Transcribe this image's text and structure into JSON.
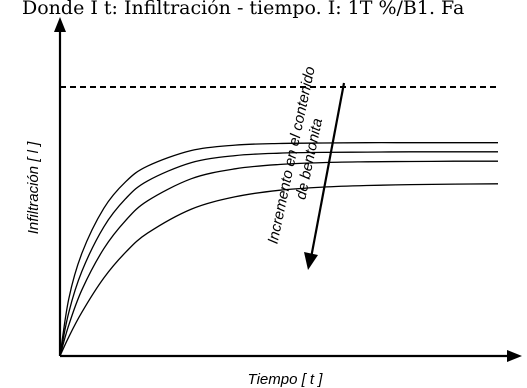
{
  "caption": {
    "text": "Donde I t: Infiltración - tiempo. I: 1T %/B1. Fa"
  },
  "chart_data": {
    "type": "line",
    "title": "",
    "xlabel": "Tiempo [ t ]",
    "ylabel": "Infiltración   [ l ]",
    "axis_ranges": {
      "x": [
        0,
        100
      ],
      "y": [
        0,
        100
      ]
    },
    "grid": false,
    "legend": "none",
    "limit_line": {
      "style": "dashed",
      "y": 100
    },
    "x": [
      0,
      2,
      5,
      10,
      15,
      20,
      30,
      40,
      50,
      60,
      70,
      80,
      90,
      100
    ],
    "series": [
      {
        "values": [
          0,
          21.3,
          38.2,
          54.9,
          64.8,
          70.6,
          76.4,
          78.4,
          79.0,
          79.2,
          79.3,
          79.3,
          79.3,
          79.3
        ]
      },
      {
        "values": [
          0,
          16.2,
          31.5,
          48.0,
          58.5,
          65.1,
          71.9,
          74.5,
          75.4,
          75.7,
          75.8,
          75.9,
          75.9,
          75.9
        ]
      },
      {
        "values": [
          0,
          11.5,
          24.6,
          39.9,
          50.4,
          57.7,
          65.9,
          69.6,
          71.2,
          71.9,
          72.2,
          72.3,
          72.4,
          72.4
        ]
      },
      {
        "values": [
          0,
          7.1,
          16.3,
          29.0,
          38.6,
          45.7,
          54.6,
          59.2,
          61.6,
          62.8,
          63.4,
          63.7,
          63.9,
          64.0
        ]
      }
    ],
    "annotation": {
      "lines": [
        "Incremento en el contenido",
        "de bentonita"
      ],
      "arrow": "downward"
    }
  }
}
